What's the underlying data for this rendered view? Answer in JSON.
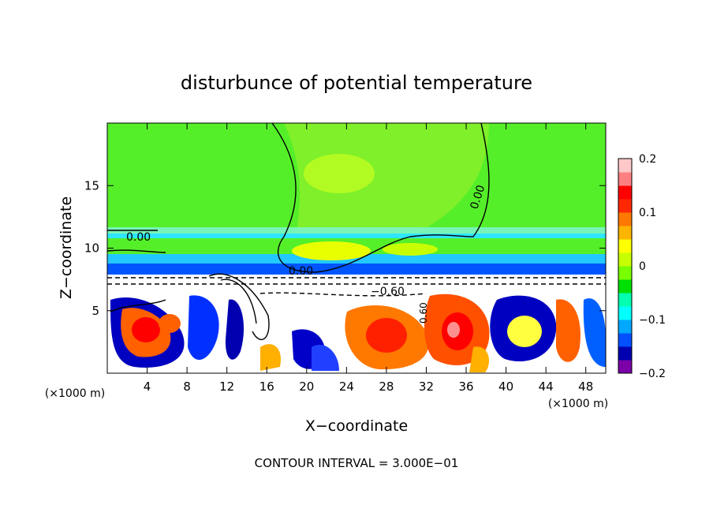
{
  "chart_data": {
    "type": "heatmap",
    "title": "disturbunce of potential temperature",
    "xlabel": "X−coordinate",
    "ylabel": "Z−coordinate",
    "x_unit_label": "(×1000 m)",
    "z_unit_label": "(×1000 m)",
    "footer": "CONTOUR INTERVAL = 3.000E−01",
    "xlim": [
      0,
      50
    ],
    "zlim": [
      0,
      20
    ],
    "x_ticks": [
      4,
      8,
      12,
      16,
      20,
      24,
      28,
      32,
      36,
      40,
      44,
      48
    ],
    "z_ticks": [
      5,
      10,
      15
    ],
    "colorbar": {
      "range": [
        -0.2,
        0.2
      ],
      "tick_values": [
        0.2,
        0.1,
        0,
        -0.1,
        -0.2
      ],
      "tick_labels": [
        "0.2",
        "0.1",
        "0",
        "−0.1",
        "−0.2"
      ],
      "colors": [
        "#7b00a8",
        "#0000b0",
        "#0050ff",
        "#00a8ff",
        "#00ffff",
        "#00ffb0",
        "#00e000",
        "#78ff00",
        "#c8ff00",
        "#ffff00",
        "#ffb400",
        "#ff7800",
        "#ff2800",
        "#ff0000",
        "#ff8080",
        "#ffc8c8"
      ]
    },
    "contour_labels": [
      "0.00",
      "0.00",
      "0.00",
      "−0.60",
      "0.60"
    ],
    "grid": false,
    "legend": "colorbar-right"
  }
}
